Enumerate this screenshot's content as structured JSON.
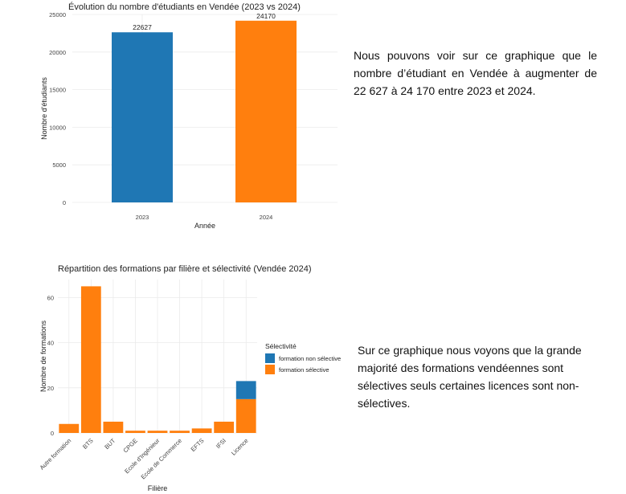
{
  "text_blocks": {
    "paragraph_1": "Nous pouvons voir sur ce graphique que le nombre d’étudiant en Vendée à augmenter de 22 627 à 24 170 entre 2023 et 2024.",
    "paragraph_2": "Sur ce graphique nous voyons que la grande majorité des formations vendéennes sont sélectives seuls certaines licences sont non-sélectives."
  },
  "chart_data": [
    {
      "type": "bar",
      "title": "Évolution du nombre d'étudiants en Vendée (2023 vs 2024)",
      "xlabel": "Année",
      "ylabel": "Nombre d'étudiants",
      "categories": [
        "2023",
        "2024"
      ],
      "values": [
        22627,
        24170
      ],
      "data_labels": [
        "22627",
        "24170"
      ],
      "colors": [
        "#1f77b4",
        "#ff7f0e"
      ],
      "ylim": [
        0,
        25000
      ],
      "yticks": [
        0,
        5000,
        10000,
        15000,
        20000,
        25000
      ],
      "ytick_labels": [
        "0",
        "5000",
        "10000",
        "15000",
        "20000",
        "25000"
      ],
      "grid": true
    },
    {
      "type": "bar",
      "stacked": true,
      "title": "Répartition des formations par filière et sélectivité (Vendée 2024)",
      "xlabel": "Filière",
      "ylabel": "Nombre de formations",
      "categories": [
        "Autre formation",
        "BTS",
        "BUT",
        "CPGE",
        "Ecole d'Ingénieur",
        "Ecole de Commerce",
        "EFTS",
        "IFSI",
        "Licence"
      ],
      "series": [
        {
          "name": "formation sélective",
          "color": "#ff7f0e",
          "values": [
            4,
            65,
            5,
            1,
            1,
            1,
            2,
            5,
            15
          ]
        },
        {
          "name": "formation non sélective",
          "color": "#1f77b4",
          "values": [
            0,
            0,
            0,
            0,
            0,
            0,
            0,
            0,
            8
          ]
        }
      ],
      "legend_title": "Sélectivité",
      "legend_entries": [
        "formation non sélective",
        "formation sélective"
      ],
      "legend_placement": "right",
      "ylim": [
        0,
        68
      ],
      "yticks": [
        0,
        20,
        40,
        60
      ],
      "ytick_labels": [
        "0",
        "20",
        "40",
        "60"
      ],
      "grid": true
    }
  ]
}
